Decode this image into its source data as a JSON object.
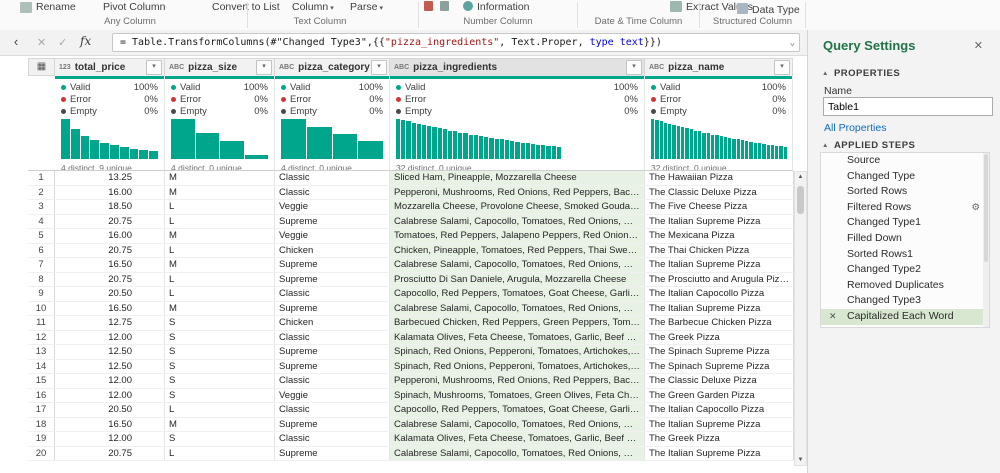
{
  "colors": {
    "accent": "#00A68C",
    "error": "#D13438",
    "empty_dot": "#4A4A4A",
    "title_green": "#217346",
    "link_blue": "#0F6CBD",
    "selected_column_bg": "#E8F2E4",
    "selected_step_bg": "#D8E7D0"
  },
  "icons": {
    "close": "✕",
    "check": "✓",
    "fx": "fx",
    "chevron_left": "‹",
    "expand": "⌄",
    "caret_down": "▾",
    "filter": "▾",
    "table": "▦",
    "gear": "⚙",
    "scroll_up": "▲",
    "scroll_down": "▼",
    "triangle": "▲"
  },
  "ribbon": {
    "buttons": [
      {
        "label": "Rename"
      },
      {
        "label": "Pivot Column"
      },
      {
        "label": "Convert to List"
      },
      {
        "label": "Column",
        "caret": true
      },
      {
        "label": "Parse",
        "caret": true
      },
      {
        "label": "Information"
      },
      {
        "label": "Extract Values"
      },
      {
        "label": "Data Type"
      }
    ],
    "groups": [
      "Any Column",
      "Text Column",
      "Number Column",
      "Date & Time Column",
      "Structured Column"
    ]
  },
  "formula_bar": {
    "segments": [
      {
        "t": "= Table.TransformColumns(#\"Changed Type3\",{{",
        "c": "plain"
      },
      {
        "t": "\"pizza_ingredients\"",
        "c": "string"
      },
      {
        "t": ", Text.Proper, ",
        "c": "plain"
      },
      {
        "t": "type text",
        "c": "keyword"
      },
      {
        "t": "}})",
        "c": "plain"
      }
    ]
  },
  "grid": {
    "quality_labels": {
      "valid": "Valid",
      "error": "Error",
      "empty": "Empty"
    },
    "columns": [
      {
        "name": "total_price",
        "type_icon": "123",
        "valid": "100%",
        "error": "0%",
        "empty": "0%",
        "distinct": "4 distinct, 9 unique",
        "selected": false,
        "histogram": [
          1.0,
          0.76,
          0.58,
          0.47,
          0.4,
          0.34,
          0.3,
          0.26,
          0.23,
          0.2
        ]
      },
      {
        "name": "pizza_size",
        "type_icon": "ABC",
        "valid": "100%",
        "error": "0%",
        "empty": "0%",
        "distinct": "4 distinct, 0 unique",
        "selected": false,
        "histogram": [
          1.0,
          0.64,
          0.45,
          0.1
        ]
      },
      {
        "name": "pizza_category",
        "type_icon": "ABC",
        "valid": "100%",
        "error": "0%",
        "empty": "0%",
        "distinct": "4 distinct, 0 unique",
        "selected": false,
        "histogram": [
          1.0,
          0.8,
          0.62,
          0.46
        ]
      },
      {
        "name": "pizza_ingredients",
        "type_icon": "ABC",
        "valid": "100%",
        "error": "0%",
        "empty": "0%",
        "distinct": "32 distinct, 0 unique",
        "selected": true,
        "histogram": [
          1.0,
          0.97,
          0.94,
          0.91,
          0.88,
          0.85,
          0.82,
          0.79,
          0.77,
          0.74,
          0.71,
          0.69,
          0.66,
          0.64,
          0.61,
          0.59,
          0.57,
          0.55,
          0.53,
          0.51,
          0.49,
          0.47,
          0.45,
          0.43,
          0.41,
          0.4,
          0.38,
          0.36,
          0.35,
          0.33,
          0.32,
          0.3
        ]
      },
      {
        "name": "pizza_name",
        "type_icon": "ABC",
        "valid": "100%",
        "error": "0%",
        "empty": "0%",
        "distinct": "32 distinct, 0 unique",
        "selected": false,
        "histogram": [
          1.0,
          0.97,
          0.94,
          0.91,
          0.88,
          0.85,
          0.82,
          0.79,
          0.77,
          0.74,
          0.71,
          0.69,
          0.66,
          0.64,
          0.61,
          0.59,
          0.57,
          0.55,
          0.53,
          0.51,
          0.49,
          0.47,
          0.45,
          0.43,
          0.41,
          0.4,
          0.38,
          0.36,
          0.35,
          0.33,
          0.32,
          0.3
        ]
      }
    ],
    "rows": [
      [
        "1",
        "13.25",
        "M",
        "Classic",
        "Sliced Ham, Pineapple, Mozzarella Cheese",
        "The Hawaiian Pizza"
      ],
      [
        "2",
        "16.00",
        "M",
        "Classic",
        "Pepperoni, Mushrooms, Red Onions, Red Peppers, Bacon",
        "The Classic Deluxe Pizza"
      ],
      [
        "3",
        "18.50",
        "L",
        "Veggie",
        "Mozzarella Cheese, Provolone Cheese, Smoked Gouda Cheese, Roman...",
        "The Five Cheese Pizza"
      ],
      [
        "4",
        "20.75",
        "L",
        "Supreme",
        "Calabrese Salami, Capocollo, Tomatoes, Red Onions, Green Olives, Gar...",
        "The Italian Supreme Pizza"
      ],
      [
        "5",
        "16.00",
        "M",
        "Veggie",
        "Tomatoes, Red Peppers, Jalapeno Peppers, Red Onions, Cilantro, Corn,...",
        "The Mexicana Pizza"
      ],
      [
        "6",
        "20.75",
        "L",
        "Chicken",
        "Chicken, Pineapple, Tomatoes, Red Peppers, Thai Sweet Chilli Sauce",
        "The Thai Chicken Pizza"
      ],
      [
        "7",
        "16.50",
        "M",
        "Supreme",
        "Calabrese Salami, Capocollo, Tomatoes, Red Onions, Green Olives, Gar...",
        "The Italian Supreme Pizza"
      ],
      [
        "8",
        "20.75",
        "L",
        "Supreme",
        "Prosciutto Di San Daniele, Arugula, Mozzarella Cheese",
        "The Prosciutto and Arugula Pizza"
      ],
      [
        "9",
        "20.50",
        "L",
        "Classic",
        "Capocollo, Red Peppers, Tomatoes, Goat Cheese, Garlic, Oregano",
        "The Italian Capocollo Pizza"
      ],
      [
        "10",
        "16.50",
        "M",
        "Supreme",
        "Calabrese Salami, Capocollo, Tomatoes, Red Onions, Green Olives, Gar...",
        "The Italian Supreme Pizza"
      ],
      [
        "11",
        "12.75",
        "S",
        "Chicken",
        "Barbecued Chicken, Red Peppers, Green Peppers, Tomatoes, Red Onio...",
        "The Barbecue Chicken Pizza"
      ],
      [
        "12",
        "12.00",
        "S",
        "Classic",
        "Kalamata Olives, Feta Cheese, Tomatoes, Garlic, Beef Chuck Roast, Re...",
        "The Greek Pizza"
      ],
      [
        "13",
        "12.50",
        "S",
        "Supreme",
        "Spinach, Red Onions, Pepperoni, Tomatoes, Artichokes, Kalamata Oliv...",
        "The Spinach Supreme Pizza"
      ],
      [
        "14",
        "12.50",
        "S",
        "Supreme",
        "Spinach, Red Onions, Pepperoni, Tomatoes, Artichokes, Kalamata Oliv...",
        "The Spinach Supreme Pizza"
      ],
      [
        "15",
        "12.00",
        "S",
        "Classic",
        "Pepperoni, Mushrooms, Red Onions, Red Peppers, Bacon",
        "The Classic Deluxe Pizza"
      ],
      [
        "16",
        "12.00",
        "S",
        "Veggie",
        "Spinach, Mushrooms, Tomatoes, Green Olives, Feta Cheese",
        "The Green Garden Pizza"
      ],
      [
        "17",
        "20.50",
        "L",
        "Classic",
        "Capocollo, Red Peppers, Tomatoes, Goat Cheese, Garlic, Oregano",
        "The Italian Capocollo Pizza"
      ],
      [
        "18",
        "16.50",
        "M",
        "Supreme",
        "Calabrese Salami, Capocollo, Tomatoes, Red Onions, Green Olives, Gar...",
        "The Italian Supreme Pizza"
      ],
      [
        "19",
        "12.00",
        "S",
        "Classic",
        "Kalamata Olives, Feta Cheese, Tomatoes, Garlic, Beef Chuck Roast, Re...",
        "The Greek Pizza"
      ],
      [
        "20",
        "20.75",
        "L",
        "Supreme",
        "Calabrese Salami, Capocollo, Tomatoes, Red Onions, Green Olives, Gar...",
        "The Italian Supreme Pizza"
      ]
    ]
  },
  "query_settings": {
    "title": "Query Settings",
    "properties_label": "PROPERTIES",
    "name_label": "Name",
    "name_value": "Table1",
    "all_properties_label": "All Properties",
    "applied_steps_label": "APPLIED STEPS",
    "steps": [
      {
        "label": "Source"
      },
      {
        "label": "Changed Type"
      },
      {
        "label": "Sorted Rows"
      },
      {
        "label": "Filtered Rows",
        "gear": true
      },
      {
        "label": "Changed Type1"
      },
      {
        "label": "Filled Down"
      },
      {
        "label": "Sorted Rows1"
      },
      {
        "label": "Changed Type2"
      },
      {
        "label": "Removed Duplicates"
      },
      {
        "label": "Changed Type3"
      },
      {
        "label": "Capitalized Each Word",
        "selected": true,
        "deletable": true
      }
    ]
  }
}
